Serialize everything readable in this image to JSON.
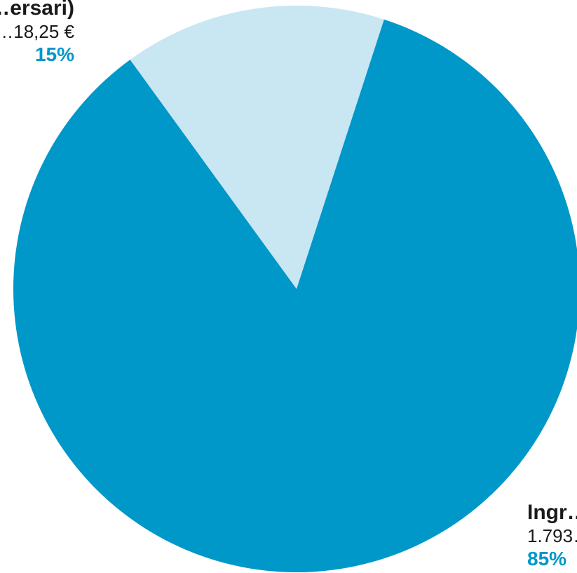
{
  "chart_data": {
    "type": "pie",
    "slices": [
      {
        "name": "…ersari)",
        "amount": "…18,25 €",
        "percent_label": "15%",
        "value": 15,
        "color": "#c9e6f3"
      },
      {
        "name": "Ingr…",
        "amount": "1.793…",
        "percent_label": "85%",
        "value": 85,
        "color": "#0097c9"
      }
    ],
    "start_angle_deg": -36,
    "direction": "clockwise",
    "legend": "none",
    "label_placement": "outside",
    "percent_color": "#0097c9"
  }
}
